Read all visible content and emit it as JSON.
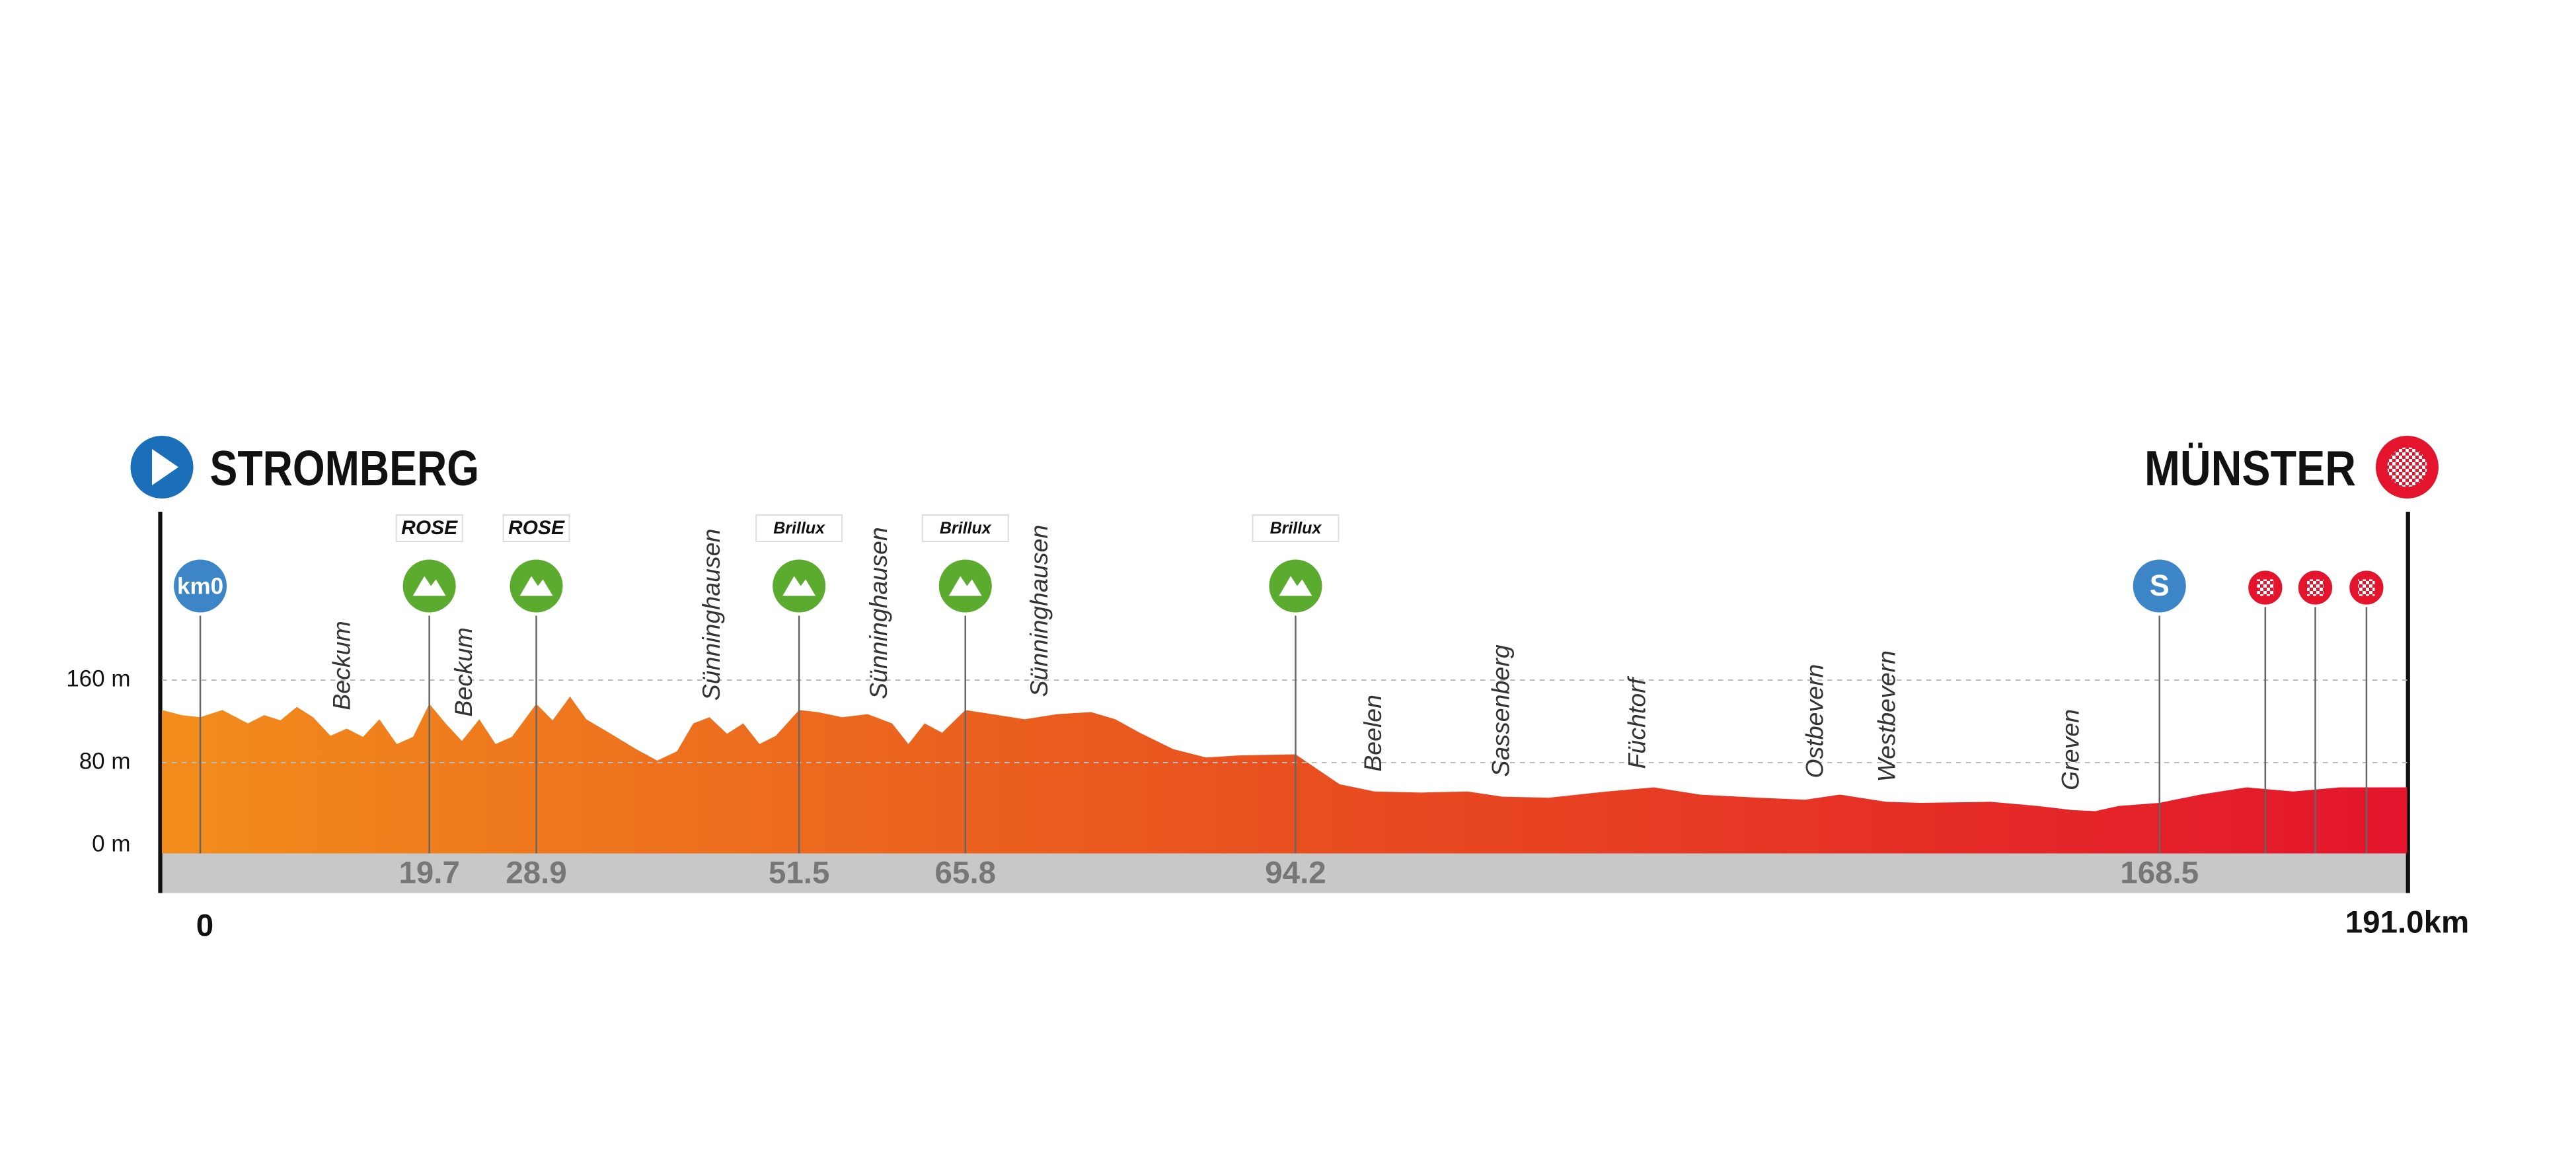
{
  "chart_data": {
    "type": "elevation-profile",
    "start": "STROMBERG",
    "finish": "MÜNSTER",
    "x": [
      -3.3,
      -1.6,
      0,
      1.9,
      4.1,
      5.5,
      6.9,
      8.3,
      9.7,
      11.2,
      12.6,
      14.0,
      15.4,
      16.9,
      18.3,
      19.7,
      21.1,
      22.5,
      24.0,
      25.4,
      26.8,
      28.9,
      30.3,
      31.8,
      33.2,
      35.3,
      37.5,
      39.3,
      41.0,
      42.4,
      43.8,
      45.3,
      46.7,
      48.1,
      49.5,
      51.5,
      53.1,
      55.2,
      57.4,
      59.5,
      60.9,
      62.3,
      63.8,
      65.8,
      68.1,
      70.9,
      73.7,
      76.6,
      78.7,
      80.8,
      83.7,
      86.5,
      89.3,
      94.2,
      95.9,
      98,
      101,
      105,
      109,
      112,
      116,
      121,
      125,
      129,
      134,
      138,
      141,
      145,
      148,
      154,
      158,
      161,
      163,
      165,
      168.5,
      172,
      176,
      180,
      184,
      187,
      189.8
    ],
    "values": [
      131,
      126,
      124,
      131,
      118,
      126,
      121,
      134,
      124,
      106,
      113,
      105,
      122,
      98,
      105,
      137,
      118,
      101,
      122,
      98,
      105,
      137,
      121,
      144,
      122,
      108,
      93,
      82,
      91,
      118,
      124,
      108,
      118,
      98,
      106,
      131,
      129,
      124,
      127,
      118,
      98,
      118,
      109,
      131,
      127,
      122,
      127,
      129,
      122,
      109,
      93,
      85,
      87,
      88,
      75,
      59,
      52,
      51,
      52,
      47,
      46,
      52,
      56,
      49,
      46,
      44,
      49,
      42,
      41,
      42,
      38,
      34,
      33,
      38,
      41,
      49,
      56,
      52,
      56,
      56,
      56
    ],
    "xlim": [
      -3.3,
      189.8
    ],
    "ylim": [
      -8,
      320
    ],
    "yticks": [
      {
        "value": 0,
        "label": "0 m"
      },
      {
        "value": 80,
        "label": "80 m"
      },
      {
        "value": 160,
        "label": "160 m"
      }
    ],
    "grid": true,
    "colors": [
      "#f28c1c",
      "#e8501f",
      "#e3142c"
    ],
    "start_badge": "km0",
    "start_badge_km": 0,
    "climbs": [
      {
        "km": 19.7,
        "sponsor": "ROSE"
      },
      {
        "km": 28.9,
        "sponsor": "ROSE"
      },
      {
        "km": 51.5,
        "sponsor": "Brillux"
      },
      {
        "km": 65.8,
        "sponsor": "Brillux"
      },
      {
        "km": 94.2,
        "sponsor": "Brillux"
      }
    ],
    "sprint": {
      "km": 168.5,
      "label": "S"
    },
    "finish_laps": [
      177.6,
      181.9,
      186.3
    ],
    "towns": [
      {
        "name": "Beckum",
        "km": 12.3
      },
      {
        "name": "Beckum",
        "km": 22.8
      },
      {
        "name": "Sünninghausen",
        "km": 44.1
      },
      {
        "name": "Sünninghausen",
        "km": 58.5
      },
      {
        "name": "Sünninghausen",
        "km": 72.3
      },
      {
        "name": "Beelen",
        "km": 101
      },
      {
        "name": "Sassenberg",
        "km": 112
      },
      {
        "name": "Füchtorf",
        "km": 123.7
      },
      {
        "name": "Ostbevern",
        "km": 139
      },
      {
        "name": "Westbevern",
        "km": 145.2
      },
      {
        "name": "Greven",
        "km": 161
      }
    ],
    "start_km": 0,
    "finish_label": "191.0km"
  }
}
